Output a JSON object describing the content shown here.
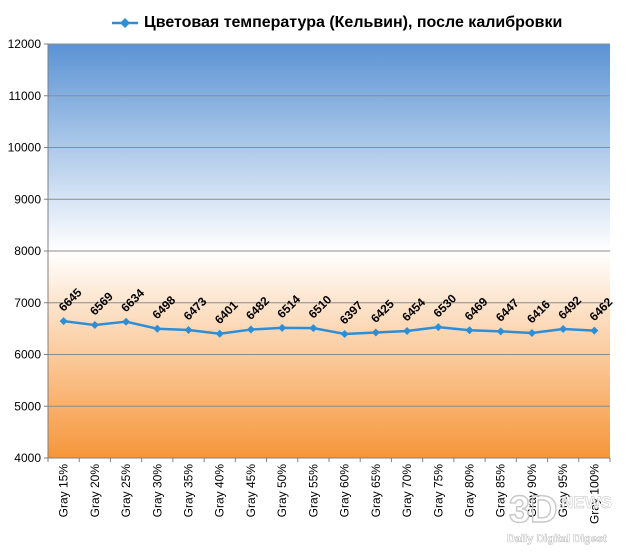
{
  "chart_data": {
    "type": "line",
    "title": "",
    "xlabel": "",
    "ylabel": "",
    "ylim": [
      4000,
      12000
    ],
    "yticks": [
      4000,
      5000,
      6000,
      7000,
      8000,
      9000,
      10000,
      11000,
      12000
    ],
    "grid": true,
    "legend_position": "top",
    "categories": [
      "Gray 15%",
      "Gray 20%",
      "Gray 25%",
      "Gray 30%",
      "Gray 35%",
      "Gray 40%",
      "Gray 45%",
      "Gray 50%",
      "Gray 55%",
      "Gray 60%",
      "Gray 65%",
      "Gray 70%",
      "Gray 75%",
      "Gray 80%",
      "Gray 85%",
      "Gray 90%",
      "Gray 95%",
      "Gray 100%"
    ],
    "series": [
      {
        "name": "Цветовая температура (Кельвин), после калибровки",
        "color": "#2d8ed6",
        "values": [
          6645,
          6569,
          6634,
          6498,
          6473,
          6401,
          6482,
          6514,
          6510,
          6397,
          6425,
          6454,
          6530,
          6469,
          6447,
          6416,
          6492,
          6462
        ]
      }
    ]
  },
  "colors": {
    "plot_top": "#5b93d3",
    "plot_mid": "#ffffff",
    "plot_bottom": "#f6963a",
    "series": "#2d8ed6"
  },
  "watermark": {
    "logo_text": "3D",
    "brand_text": "NEWS",
    "tagline": "Daily Digital Digest"
  }
}
